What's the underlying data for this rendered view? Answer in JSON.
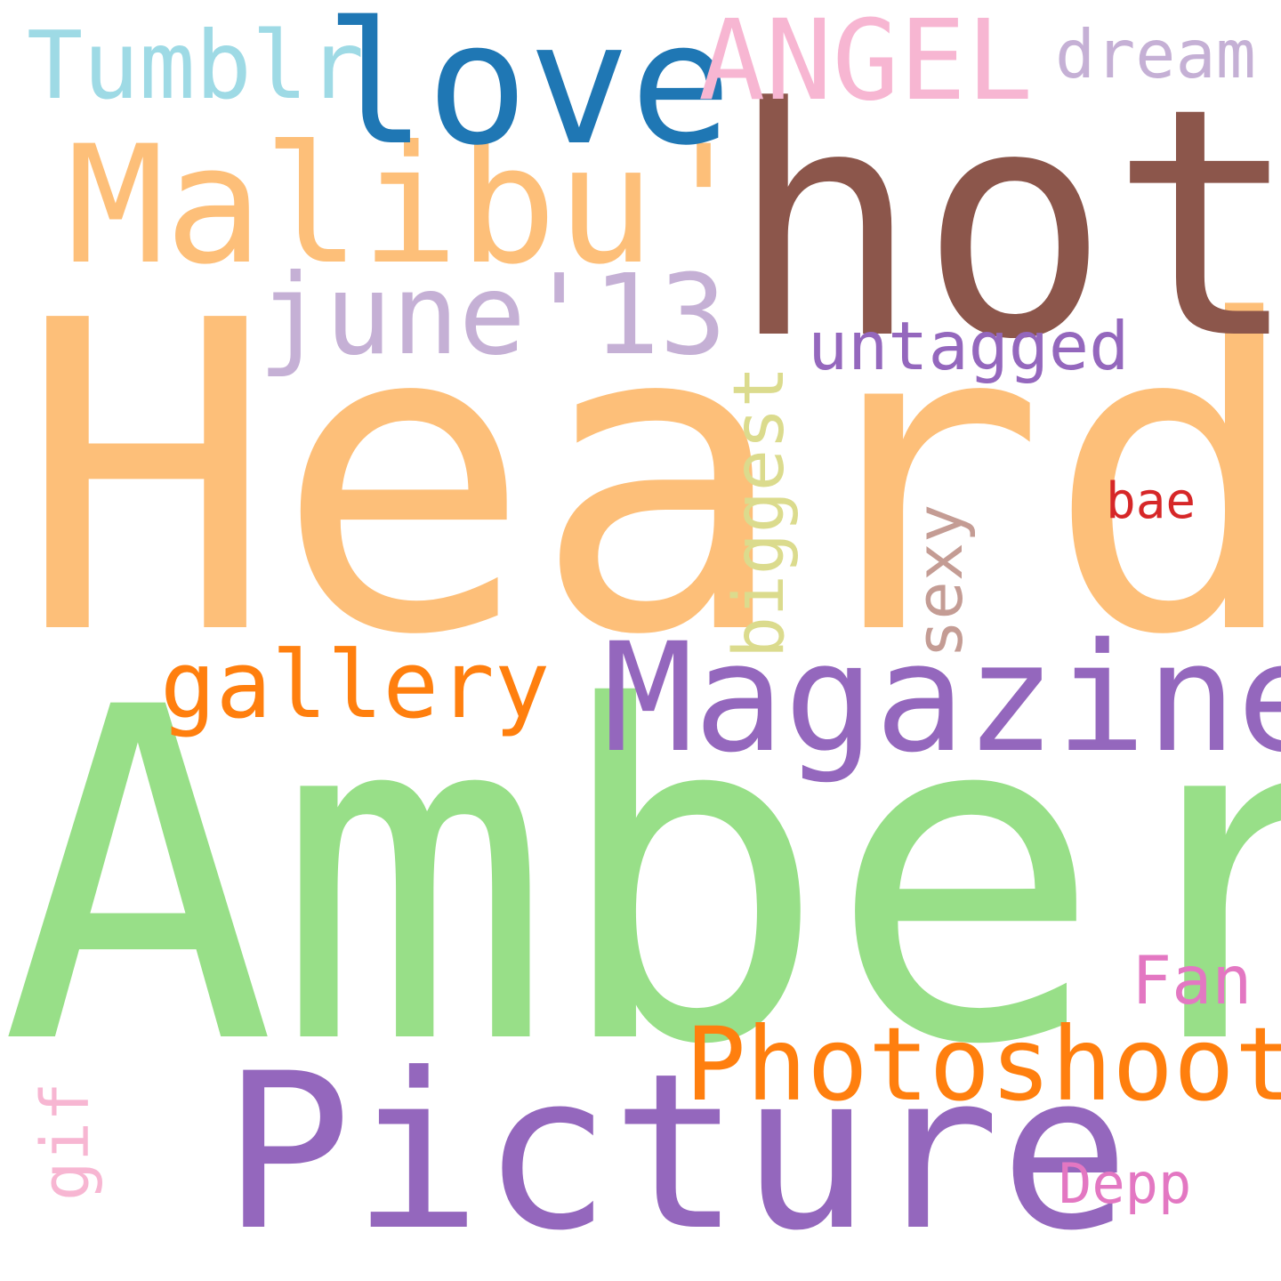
{
  "words": [
    {
      "key": "heard",
      "text": "Heard",
      "color": "#FDBF79"
    },
    {
      "key": "amber",
      "text": "Amber",
      "color": "#98DF88"
    },
    {
      "key": "hot",
      "text": "hot",
      "color": "#8C564B"
    },
    {
      "key": "picture",
      "text": "Picture",
      "color": "#9467BD"
    },
    {
      "key": "malibu",
      "text": "Malibu'",
      "color": "#FDBF79"
    },
    {
      "key": "love",
      "text": "love",
      "color": "#1F77B4"
    },
    {
      "key": "magazine",
      "text": "Magazine",
      "color": "#9467BD"
    },
    {
      "key": "photoshoot",
      "text": "Photoshoot",
      "color": "#FF7F0E"
    },
    {
      "key": "june13",
      "text": "june'13",
      "color": "#C5B0D5"
    },
    {
      "key": "angel",
      "text": "ANGEL",
      "color": "#F7B6D2"
    },
    {
      "key": "gallery",
      "text": "gallery",
      "color": "#FF7F0E"
    },
    {
      "key": "tumblr",
      "text": "Tumblr",
      "color": "#9EDAE5"
    },
    {
      "key": "untagged",
      "text": "untagged",
      "color": "#9467BD"
    },
    {
      "key": "dream",
      "text": "dream",
      "color": "#C5B0D5"
    },
    {
      "key": "biggest",
      "text": "biggest",
      "color": "#DBDB8D"
    },
    {
      "key": "sexy",
      "text": "sexy",
      "color": "#C49C94"
    },
    {
      "key": "fan",
      "text": "Fan",
      "color": "#E377C2"
    },
    {
      "key": "gif",
      "text": "gif",
      "color": "#F7B6D2"
    },
    {
      "key": "depp",
      "text": "Depp",
      "color": "#E377C2"
    },
    {
      "key": "bae",
      "text": "bae",
      "color": "#D62728"
    }
  ]
}
